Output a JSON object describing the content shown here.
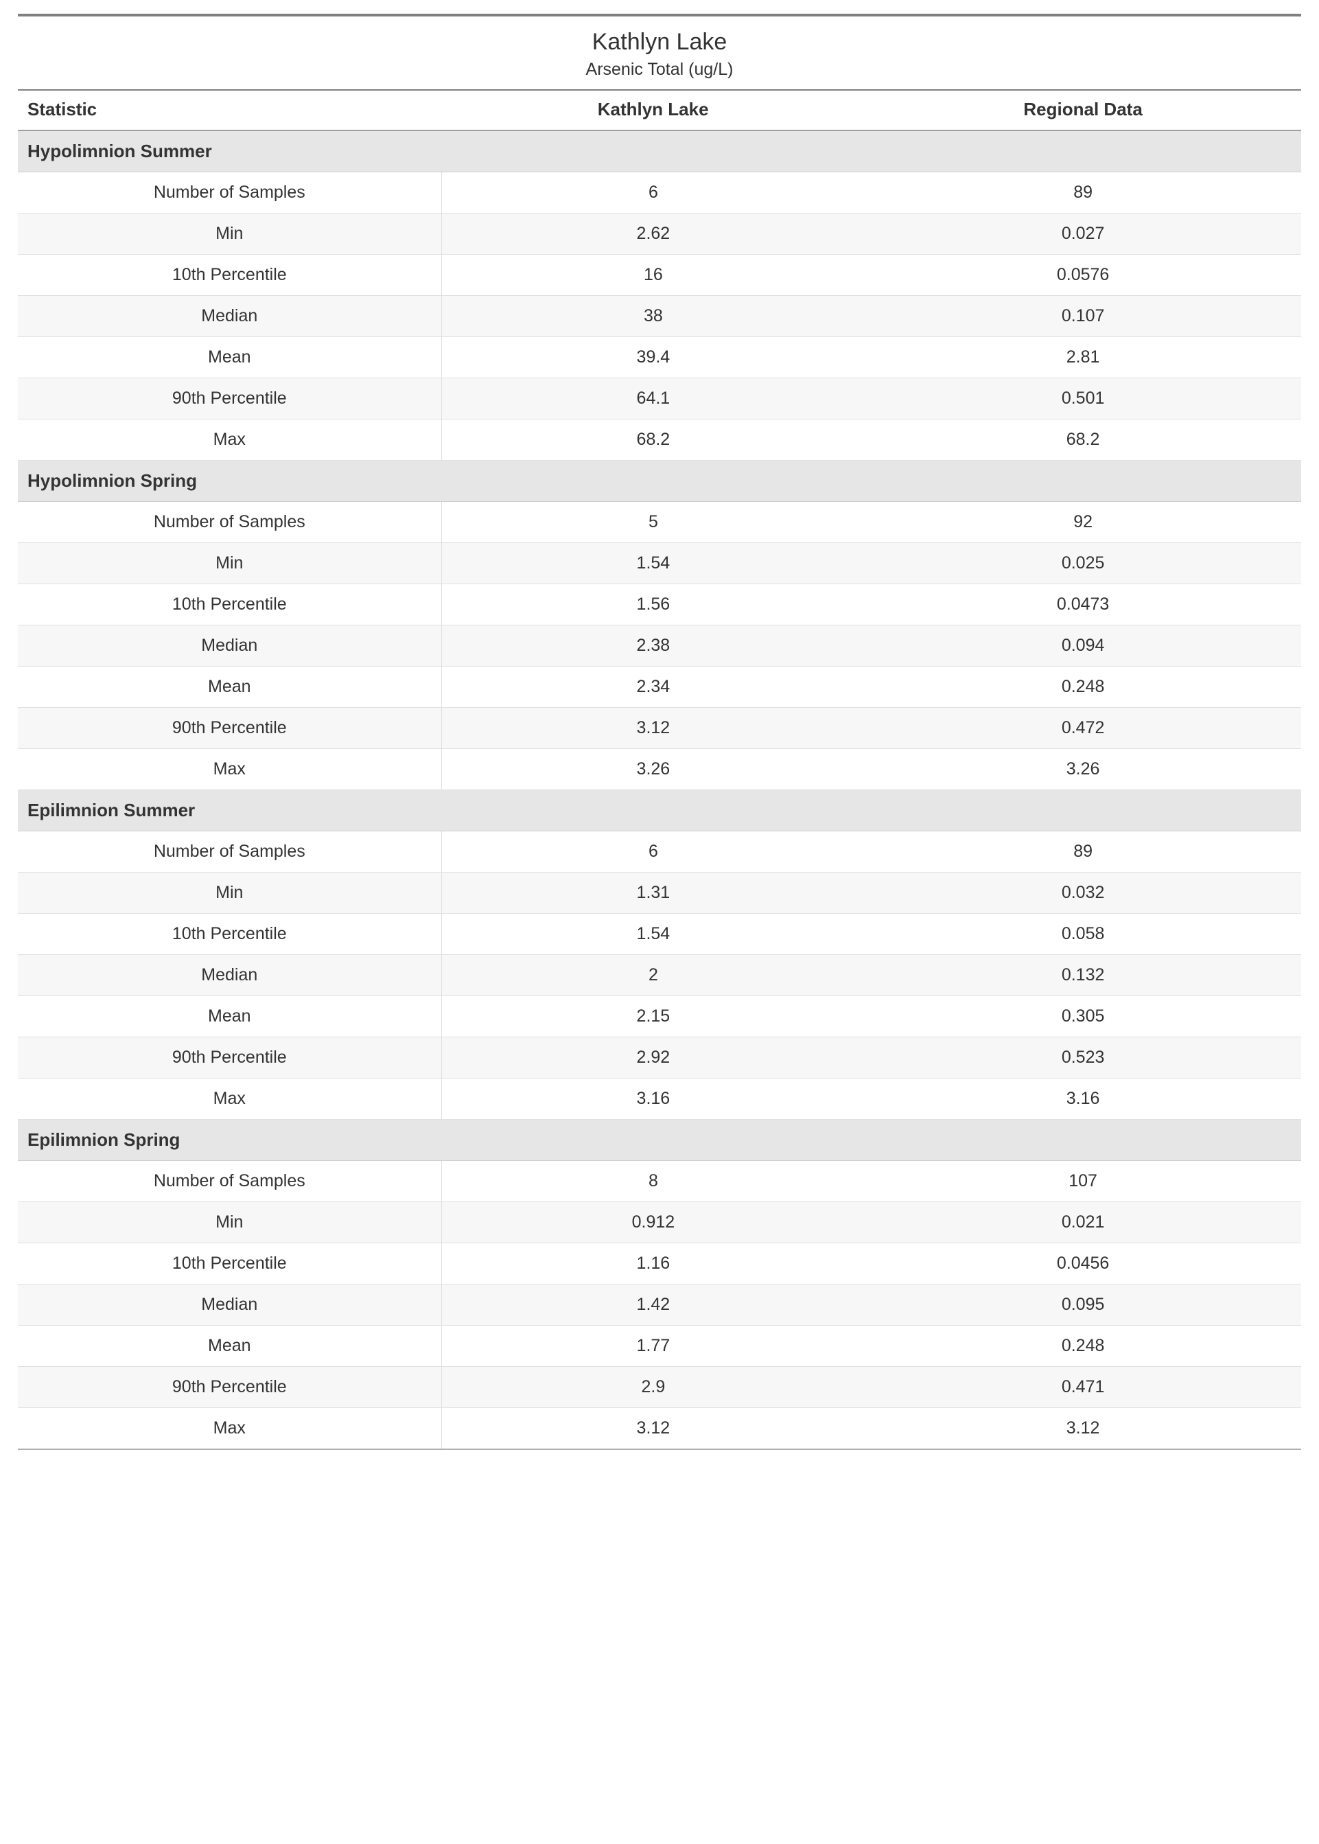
{
  "colors": {
    "page_bg": "#ffffff",
    "text": "#333333",
    "top_rule": "#808080",
    "header_rule_top": "#808080",
    "header_rule_bottom": "#a0a0a0",
    "section_bg": "#e6e6e6",
    "row_border": "#e0e0e0",
    "row_alt_bg": "#f7f7f7",
    "section_bottom_rule": "#b0b0b0"
  },
  "typography": {
    "family": "Segoe UI",
    "title_size_pt": 26,
    "subtitle_size_pt": 19,
    "header_size_pt": 20,
    "section_size_pt": 20,
    "cell_size_pt": 19
  },
  "title": {
    "main": "Kathlyn Lake",
    "sub": "Arsenic Total (ug/L)"
  },
  "columns": {
    "stat": "Statistic",
    "site": "Kathlyn Lake",
    "regional": "Regional Data",
    "widths_pct": [
      33,
      33,
      34
    ]
  },
  "stat_labels": {
    "n": "Number of Samples",
    "min": "Min",
    "p10": "10th Percentile",
    "median": "Median",
    "mean": "Mean",
    "p90": "90th Percentile",
    "max": "Max"
  },
  "sections": [
    {
      "name": "Hypolimnion Summer",
      "rows": [
        {
          "stat": "n",
          "site": "6",
          "regional": "89"
        },
        {
          "stat": "min",
          "site": "2.62",
          "regional": "0.027"
        },
        {
          "stat": "p10",
          "site": "16",
          "regional": "0.0576"
        },
        {
          "stat": "median",
          "site": "38",
          "regional": "0.107"
        },
        {
          "stat": "mean",
          "site": "39.4",
          "regional": "2.81"
        },
        {
          "stat": "p90",
          "site": "64.1",
          "regional": "0.501"
        },
        {
          "stat": "max",
          "site": "68.2",
          "regional": "68.2"
        }
      ]
    },
    {
      "name": "Hypolimnion Spring",
      "rows": [
        {
          "stat": "n",
          "site": "5",
          "regional": "92"
        },
        {
          "stat": "min",
          "site": "1.54",
          "regional": "0.025"
        },
        {
          "stat": "p10",
          "site": "1.56",
          "regional": "0.0473"
        },
        {
          "stat": "median",
          "site": "2.38",
          "regional": "0.094"
        },
        {
          "stat": "mean",
          "site": "2.34",
          "regional": "0.248"
        },
        {
          "stat": "p90",
          "site": "3.12",
          "regional": "0.472"
        },
        {
          "stat": "max",
          "site": "3.26",
          "regional": "3.26"
        }
      ]
    },
    {
      "name": "Epilimnion Summer",
      "rows": [
        {
          "stat": "n",
          "site": "6",
          "regional": "89"
        },
        {
          "stat": "min",
          "site": "1.31",
          "regional": "0.032"
        },
        {
          "stat": "p10",
          "site": "1.54",
          "regional": "0.058"
        },
        {
          "stat": "median",
          "site": "2",
          "regional": "0.132"
        },
        {
          "stat": "mean",
          "site": "2.15",
          "regional": "0.305"
        },
        {
          "stat": "p90",
          "site": "2.92",
          "regional": "0.523"
        },
        {
          "stat": "max",
          "site": "3.16",
          "regional": "3.16"
        }
      ]
    },
    {
      "name": "Epilimnion Spring",
      "rows": [
        {
          "stat": "n",
          "site": "8",
          "regional": "107"
        },
        {
          "stat": "min",
          "site": "0.912",
          "regional": "0.021"
        },
        {
          "stat": "p10",
          "site": "1.16",
          "regional": "0.0456"
        },
        {
          "stat": "median",
          "site": "1.42",
          "regional": "0.095"
        },
        {
          "stat": "mean",
          "site": "1.77",
          "regional": "0.248"
        },
        {
          "stat": "p90",
          "site": "2.9",
          "regional": "0.471"
        },
        {
          "stat": "max",
          "site": "3.12",
          "regional": "3.12"
        }
      ]
    }
  ]
}
